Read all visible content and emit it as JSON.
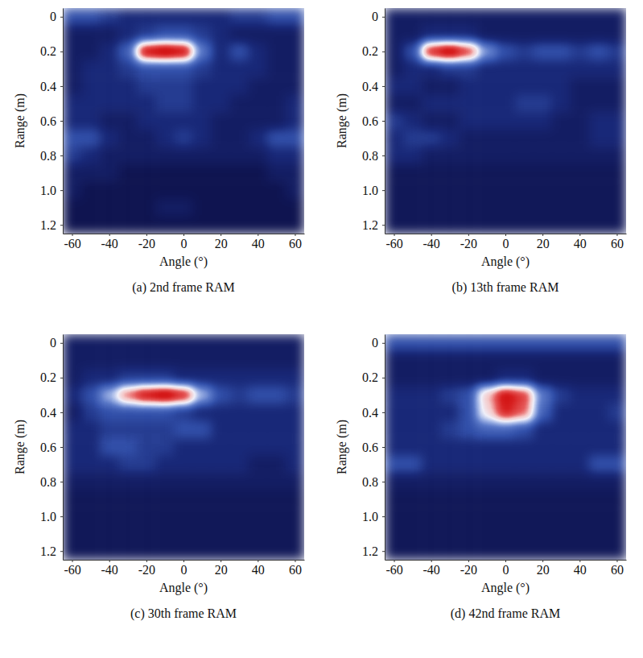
{
  "chart_data": [
    {
      "type": "heatmap",
      "title": "(a) 2nd frame RAM",
      "x_label": "Angle (°)",
      "y_label": "Range (m)",
      "xlim": [
        -65,
        65
      ],
      "ylim": [
        -0.05,
        1.25
      ],
      "xticks": [
        -60,
        -40,
        -20,
        0,
        20,
        40,
        60
      ],
      "yticks": [
        0,
        0.2,
        0.4,
        0.6,
        0.8,
        {
          "value": 1,
          "label": "1.0"
        },
        1.2
      ],
      "zlim": [
        0,
        1
      ],
      "x": [
        -60,
        -50,
        -40,
        -30,
        -20,
        -10,
        0,
        10,
        20,
        30,
        40,
        50,
        60
      ],
      "y": [
        0,
        0.1,
        0.2,
        0.3,
        0.4,
        0.5,
        0.6,
        0.7,
        0.8,
        0.9,
        1,
        1.1,
        1.2
      ],
      "z": [
        [
          0.3,
          0.3,
          0.25,
          0.2,
          0.2,
          0.2,
          0.2,
          0.2,
          0.2,
          0.25,
          0.25,
          0.3,
          0.3
        ],
        [
          0.15,
          0.15,
          0.15,
          0.2,
          0.25,
          0.3,
          0.3,
          0.25,
          0.2,
          0.15,
          0.15,
          0.15,
          0.15
        ],
        [
          0.15,
          0.15,
          0.2,
          0.35,
          0.95,
          1.0,
          0.95,
          0.4,
          0.2,
          0.3,
          0.2,
          0.15,
          0.15
        ],
        [
          0.15,
          0.2,
          0.2,
          0.25,
          0.3,
          0.3,
          0.3,
          0.25,
          0.2,
          0.2,
          0.2,
          0.15,
          0.15
        ],
        [
          0.15,
          0.2,
          0.2,
          0.2,
          0.25,
          0.25,
          0.25,
          0.2,
          0.2,
          0.2,
          0.15,
          0.15,
          0.15
        ],
        [
          0.2,
          0.2,
          0.2,
          0.2,
          0.2,
          0.25,
          0.25,
          0.2,
          0.2,
          0.15,
          0.15,
          0.15,
          0.2
        ],
        [
          0.2,
          0.2,
          0.15,
          0.15,
          0.2,
          0.2,
          0.2,
          0.2,
          0.15,
          0.15,
          0.15,
          0.15,
          0.2
        ],
        [
          0.3,
          0.3,
          0.2,
          0.15,
          0.15,
          0.2,
          0.25,
          0.2,
          0.15,
          0.15,
          0.2,
          0.3,
          0.3
        ],
        [
          0.25,
          0.2,
          0.15,
          0.15,
          0.15,
          0.15,
          0.15,
          0.15,
          0.15,
          0.15,
          0.15,
          0.2,
          0.2
        ],
        [
          0.15,
          0.15,
          0.15,
          0.1,
          0.1,
          0.1,
          0.1,
          0.1,
          0.1,
          0.1,
          0.1,
          0.15,
          0.15
        ],
        [
          0.15,
          0.1,
          0.1,
          0.1,
          0.1,
          0.1,
          0.1,
          0.1,
          0.1,
          0.1,
          0.1,
          0.1,
          0.15
        ],
        [
          0.1,
          0.1,
          0.1,
          0.1,
          0.1,
          0.15,
          0.15,
          0.1,
          0.1,
          0.1,
          0.1,
          0.1,
          0.1
        ],
        [
          0.1,
          0.1,
          0.1,
          0.1,
          0.1,
          0.1,
          0.1,
          0.1,
          0.1,
          0.1,
          0.1,
          0.1,
          0.1
        ]
      ]
    },
    {
      "type": "heatmap",
      "title": "(b) 13th frame RAM",
      "x_label": "Angle (°)",
      "y_label": "Range (m)",
      "xlim": [
        -65,
        65
      ],
      "ylim": [
        -0.05,
        1.25
      ],
      "xticks": [
        -60,
        -40,
        -20,
        0,
        20,
        40,
        60
      ],
      "yticks": [
        0,
        0.2,
        0.4,
        0.6,
        0.8,
        {
          "value": 1,
          "label": "1.0"
        },
        1.2
      ],
      "zlim": [
        0,
        1
      ],
      "x": [
        -60,
        -50,
        -40,
        -30,
        -20,
        -10,
        0,
        10,
        20,
        30,
        40,
        50,
        60
      ],
      "y": [
        0,
        0.1,
        0.2,
        0.3,
        0.4,
        0.5,
        0.6,
        0.7,
        0.8,
        0.9,
        1,
        1.1,
        1.2
      ],
      "z": [
        [
          0.15,
          0.15,
          0.15,
          0.15,
          0.15,
          0.15,
          0.15,
          0.15,
          0.15,
          0.15,
          0.15,
          0.15,
          0.15
        ],
        [
          0.15,
          0.15,
          0.2,
          0.2,
          0.2,
          0.15,
          0.15,
          0.15,
          0.15,
          0.15,
          0.15,
          0.15,
          0.15
        ],
        [
          0.15,
          0.3,
          0.9,
          1.0,
          0.85,
          0.45,
          0.3,
          0.25,
          0.3,
          0.3,
          0.25,
          0.3,
          0.25
        ],
        [
          0.15,
          0.2,
          0.2,
          0.25,
          0.25,
          0.2,
          0.2,
          0.2,
          0.2,
          0.2,
          0.2,
          0.2,
          0.2
        ],
        [
          0.2,
          0.2,
          0.15,
          0.15,
          0.2,
          0.2,
          0.2,
          0.2,
          0.2,
          0.2,
          0.15,
          0.15,
          0.15
        ],
        [
          0.15,
          0.15,
          0.2,
          0.2,
          0.2,
          0.2,
          0.2,
          0.25,
          0.25,
          0.2,
          0.15,
          0.15,
          0.15
        ],
        [
          0.25,
          0.2,
          0.15,
          0.15,
          0.2,
          0.2,
          0.2,
          0.2,
          0.2,
          0.15,
          0.15,
          0.2,
          0.2
        ],
        [
          0.2,
          0.25,
          0.25,
          0.2,
          0.15,
          0.15,
          0.15,
          0.15,
          0.15,
          0.15,
          0.15,
          0.2,
          0.2
        ],
        [
          0.2,
          0.2,
          0.15,
          0.15,
          0.15,
          0.15,
          0.15,
          0.15,
          0.15,
          0.15,
          0.15,
          0.15,
          0.15
        ],
        [
          0.12,
          0.12,
          0.12,
          0.12,
          0.12,
          0.12,
          0.12,
          0.12,
          0.12,
          0.12,
          0.12,
          0.12,
          0.12
        ],
        [
          0.12,
          0.12,
          0.12,
          0.12,
          0.12,
          0.12,
          0.12,
          0.12,
          0.12,
          0.12,
          0.12,
          0.12,
          0.12
        ],
        [
          0.12,
          0.12,
          0.12,
          0.12,
          0.12,
          0.12,
          0.12,
          0.12,
          0.12,
          0.12,
          0.12,
          0.12,
          0.12
        ],
        [
          0.12,
          0.12,
          0.12,
          0.12,
          0.12,
          0.12,
          0.12,
          0.12,
          0.12,
          0.12,
          0.12,
          0.12,
          0.12
        ]
      ]
    },
    {
      "type": "heatmap",
      "title": "(c) 30th frame RAM",
      "x_label": "Angle (°)",
      "y_label": "Range (m)",
      "xlim": [
        -65,
        65
      ],
      "ylim": [
        -0.05,
        1.25
      ],
      "xticks": [
        -60,
        -40,
        -20,
        0,
        20,
        40,
        60
      ],
      "yticks": [
        0,
        0.2,
        0.4,
        0.6,
        0.8,
        {
          "value": 1,
          "label": "1.0"
        },
        1.2
      ],
      "zlim": [
        0,
        1
      ],
      "x": [
        -60,
        -50,
        -40,
        -30,
        -20,
        -10,
        0,
        10,
        20,
        30,
        40,
        50,
        60
      ],
      "y": [
        0,
        0.1,
        0.2,
        0.3,
        0.4,
        0.5,
        0.6,
        0.7,
        0.8,
        0.9,
        1,
        1.1,
        1.2
      ],
      "z": [
        [
          0.15,
          0.15,
          0.15,
          0.15,
          0.15,
          0.15,
          0.15,
          0.15,
          0.15,
          0.15,
          0.15,
          0.15,
          0.15
        ],
        [
          0.15,
          0.15,
          0.15,
          0.15,
          0.15,
          0.15,
          0.15,
          0.15,
          0.15,
          0.15,
          0.15,
          0.15,
          0.15
        ],
        [
          0.15,
          0.2,
          0.2,
          0.25,
          0.25,
          0.25,
          0.2,
          0.2,
          0.2,
          0.2,
          0.2,
          0.2,
          0.2
        ],
        [
          0.2,
          0.3,
          0.5,
          0.8,
          0.95,
          1.0,
          0.9,
          0.5,
          0.3,
          0.25,
          0.3,
          0.3,
          0.25
        ],
        [
          0.15,
          0.25,
          0.3,
          0.3,
          0.3,
          0.3,
          0.25,
          0.2,
          0.2,
          0.2,
          0.2,
          0.2,
          0.2
        ],
        [
          0.2,
          0.2,
          0.25,
          0.25,
          0.25,
          0.25,
          0.3,
          0.3,
          0.2,
          0.2,
          0.2,
          0.2,
          0.2
        ],
        [
          0.2,
          0.2,
          0.3,
          0.3,
          0.25,
          0.25,
          0.2,
          0.2,
          0.2,
          0.2,
          0.2,
          0.2,
          0.2
        ],
        [
          0.2,
          0.2,
          0.2,
          0.25,
          0.25,
          0.2,
          0.2,
          0.2,
          0.2,
          0.2,
          0.15,
          0.15,
          0.2
        ],
        [
          0.15,
          0.15,
          0.15,
          0.15,
          0.15,
          0.15,
          0.15,
          0.15,
          0.15,
          0.15,
          0.15,
          0.15,
          0.15
        ],
        [
          0.12,
          0.12,
          0.12,
          0.12,
          0.12,
          0.12,
          0.12,
          0.12,
          0.12,
          0.12,
          0.12,
          0.12,
          0.12
        ],
        [
          0.12,
          0.12,
          0.12,
          0.12,
          0.12,
          0.12,
          0.12,
          0.12,
          0.12,
          0.12,
          0.12,
          0.12,
          0.12
        ],
        [
          0.12,
          0.12,
          0.12,
          0.12,
          0.12,
          0.12,
          0.12,
          0.12,
          0.12,
          0.12,
          0.12,
          0.12,
          0.12
        ],
        [
          0.12,
          0.12,
          0.12,
          0.12,
          0.12,
          0.12,
          0.12,
          0.12,
          0.12,
          0.12,
          0.12,
          0.12,
          0.12
        ]
      ]
    },
    {
      "type": "heatmap",
      "title": "(d) 42nd frame RAM",
      "x_label": "Angle (°)",
      "y_label": "Range (m)",
      "xlim": [
        -65,
        65
      ],
      "ylim": [
        -0.05,
        1.25
      ],
      "xticks": [
        -60,
        -40,
        -20,
        0,
        20,
        40,
        60
      ],
      "yticks": [
        0,
        0.2,
        0.4,
        0.6,
        0.8,
        {
          "value": 1,
          "label": "1.0"
        },
        1.2
      ],
      "zlim": [
        0,
        1
      ],
      "x": [
        -60,
        -50,
        -40,
        -30,
        -20,
        -10,
        0,
        10,
        20,
        30,
        40,
        50,
        60
      ],
      "y": [
        0,
        0.1,
        0.2,
        0.3,
        0.4,
        0.5,
        0.6,
        0.7,
        0.8,
        0.9,
        1,
        1.1,
        1.2
      ],
      "z": [
        [
          0.3,
          0.3,
          0.3,
          0.3,
          0.3,
          0.3,
          0.3,
          0.3,
          0.3,
          0.3,
          0.3,
          0.3,
          0.3
        ],
        [
          0.15,
          0.15,
          0.15,
          0.15,
          0.15,
          0.15,
          0.15,
          0.15,
          0.15,
          0.15,
          0.15,
          0.15,
          0.15
        ],
        [
          0.15,
          0.15,
          0.15,
          0.15,
          0.15,
          0.15,
          0.2,
          0.2,
          0.15,
          0.15,
          0.15,
          0.15,
          0.15
        ],
        [
          0.2,
          0.2,
          0.2,
          0.25,
          0.3,
          0.7,
          0.95,
          0.85,
          0.4,
          0.25,
          0.2,
          0.2,
          0.2
        ],
        [
          0.2,
          0.2,
          0.2,
          0.2,
          0.3,
          0.65,
          0.9,
          0.8,
          0.35,
          0.2,
          0.2,
          0.2,
          0.25
        ],
        [
          0.2,
          0.2,
          0.2,
          0.25,
          0.3,
          0.35,
          0.35,
          0.3,
          0.2,
          0.2,
          0.2,
          0.2,
          0.2
        ],
        [
          0.2,
          0.2,
          0.2,
          0.2,
          0.2,
          0.2,
          0.2,
          0.2,
          0.2,
          0.2,
          0.2,
          0.2,
          0.2
        ],
        [
          0.3,
          0.3,
          0.2,
          0.2,
          0.2,
          0.2,
          0.2,
          0.2,
          0.2,
          0.2,
          0.2,
          0.3,
          0.3
        ],
        [
          0.15,
          0.15,
          0.15,
          0.15,
          0.15,
          0.15,
          0.15,
          0.15,
          0.15,
          0.15,
          0.15,
          0.15,
          0.15
        ],
        [
          0.12,
          0.12,
          0.12,
          0.12,
          0.12,
          0.12,
          0.12,
          0.12,
          0.12,
          0.12,
          0.12,
          0.12,
          0.12
        ],
        [
          0.12,
          0.12,
          0.12,
          0.12,
          0.12,
          0.12,
          0.12,
          0.12,
          0.12,
          0.12,
          0.12,
          0.12,
          0.12
        ],
        [
          0.12,
          0.12,
          0.12,
          0.12,
          0.12,
          0.12,
          0.12,
          0.12,
          0.12,
          0.12,
          0.12,
          0.12,
          0.12
        ],
        [
          0.12,
          0.12,
          0.12,
          0.12,
          0.12,
          0.12,
          0.12,
          0.12,
          0.12,
          0.12,
          0.12,
          0.12,
          0.12
        ]
      ]
    }
  ]
}
